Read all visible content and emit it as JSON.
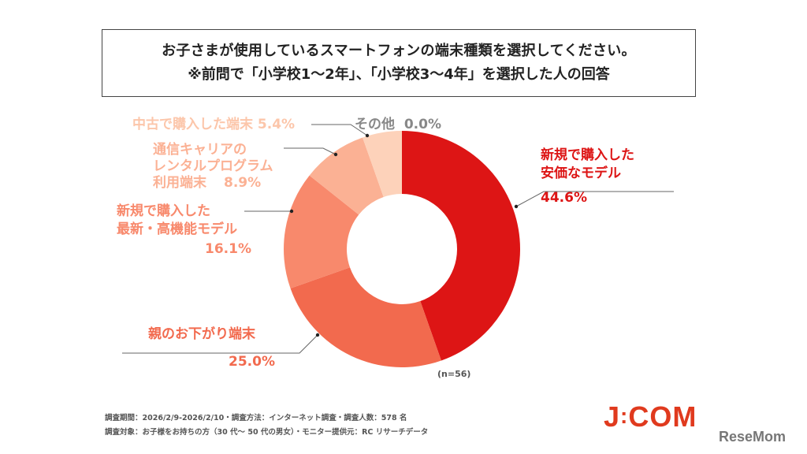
{
  "title": {
    "line1": "お子さまが使用しているスマートフォンの端末種類を選択してください。",
    "line2": "※前問で「小学校1〜2年」、「小学校3〜4年」を選択した人の回答"
  },
  "chart_data": {
    "type": "pie",
    "donut": true,
    "start": "top, clockwise",
    "n_label": "(n=56)",
    "slices": [
      {
        "label": "新規で購入した安価なモデル",
        "label_lines": [
          "新規で購入した",
          "安価なモデル"
        ],
        "value": 44.6,
        "value_label": "44.6%",
        "color": "#dd1515"
      },
      {
        "label": "親のお下がり端末",
        "label_lines": [
          "親のお下がり端末"
        ],
        "value": 25.0,
        "value_label": "25.0%",
        "color": "#f26a4e"
      },
      {
        "label": "新規で購入した最新・高機能モデル",
        "label_lines": [
          "新規で購入した",
          "最新・高機能モデル"
        ],
        "value": 16.1,
        "value_label": "16.1%",
        "color": "#f8896c"
      },
      {
        "label": "通信キャリアのレンタルプログラム利用端末",
        "label_lines": [
          "通信キャリアの",
          "レンタルプログラム",
          "利用端末"
        ],
        "value": 8.9,
        "value_label": "8.9%",
        "color": "#fbb194"
      },
      {
        "label": "中古で購入した端末",
        "label_lines": [
          "中古で購入した端末"
        ],
        "value": 5.4,
        "value_label": "5.4%",
        "color": "#fdd2ba"
      },
      {
        "label": "その他",
        "label_lines": [
          "その他"
        ],
        "value": 0.0,
        "value_label": "0.0%",
        "color": "#888888"
      }
    ]
  },
  "footer": {
    "line1": "調査期間：2026/2/9-2026/2/10・調査方法：インターネット調査・調査人数：578 名",
    "line2": "調査対象：お子様をお持ちの方（30 代〜 50 代の男女）・モニター提供元：RC リサーチデータ"
  },
  "logos": {
    "jcom": "J:COM",
    "resemom": "ReseMom"
  }
}
